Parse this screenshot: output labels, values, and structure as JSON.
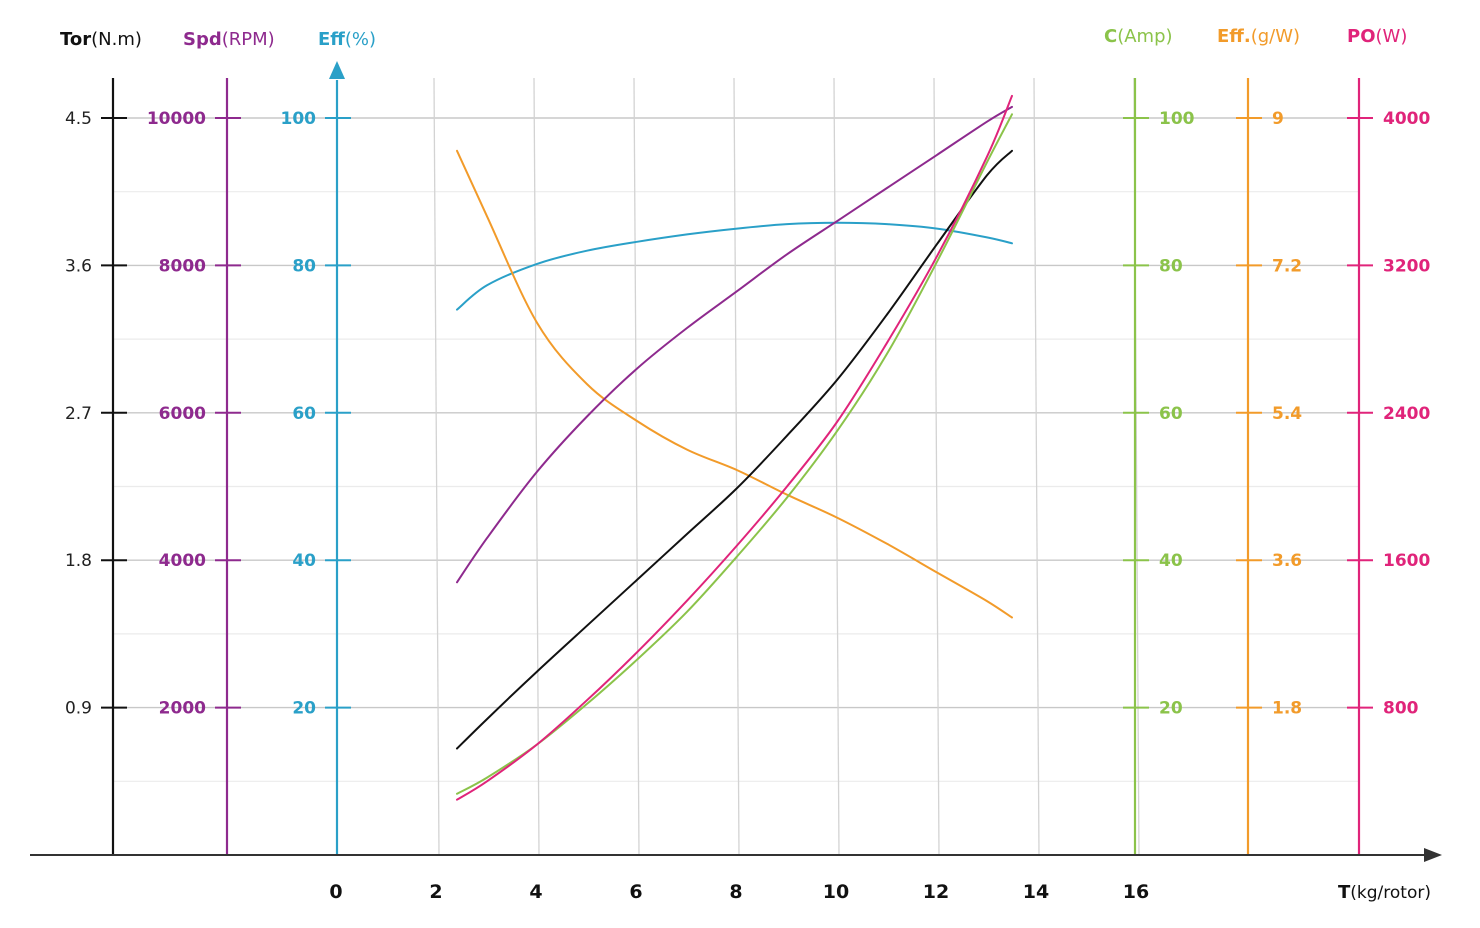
{
  "chart_data": {
    "type": "line",
    "x": {
      "label_name": "T",
      "label_unit": "(kg/rotor)",
      "ticks": [
        "0",
        "2",
        "4",
        "6",
        "8",
        "10",
        "12",
        "14",
        "16"
      ],
      "range": [
        0,
        16
      ]
    },
    "axes": [
      {
        "id": "tor",
        "name": "Tor",
        "unit": "(N.m)",
        "color": "#111111",
        "side": "left",
        "range": [
          0,
          4.5
        ],
        "ticks": [
          "0.9",
          "1.8",
          "2.7",
          "3.6",
          "4.5"
        ]
      },
      {
        "id": "spd",
        "name": "Spd",
        "unit": "(RPM)",
        "color": "#8e2a8e",
        "side": "left",
        "range": [
          0,
          10000
        ],
        "ticks": [
          "2000",
          "4000",
          "6000",
          "8000",
          "10000"
        ]
      },
      {
        "id": "eff",
        "name": "Eff",
        "unit": "(%)",
        "color": "#2aa0c8",
        "side": "left",
        "range": [
          0,
          100
        ],
        "ticks": [
          "20",
          "40",
          "60",
          "80",
          "100"
        ]
      },
      {
        "id": "cur",
        "name": "C",
        "unit": "(Amp)",
        "color": "#8bc34a",
        "side": "right",
        "range": [
          0,
          100
        ],
        "ticks": [
          "20",
          "40",
          "60",
          "80",
          "100"
        ]
      },
      {
        "id": "effg",
        "name": "Eff.",
        "unit": "(g/W)",
        "color": "#f29b2a",
        "side": "right",
        "range": [
          0,
          9
        ],
        "ticks": [
          "1.8",
          "3.6",
          "5.4",
          "7.2",
          "9"
        ]
      },
      {
        "id": "po",
        "name": "PO",
        "unit": "(W)",
        "color": "#e0247a",
        "side": "right",
        "range": [
          0,
          4000
        ],
        "ticks": [
          "800",
          "1600",
          "2400",
          "3200",
          "4000"
        ]
      }
    ],
    "series": [
      {
        "axis": "eff",
        "color": "#2aa0c8",
        "x": [
          2.4,
          3,
          4,
          5,
          6,
          7,
          8,
          9,
          10,
          11,
          12,
          13,
          13.5
        ],
        "y": [
          74,
          77.3,
          80.2,
          82,
          83.2,
          84.2,
          85,
          85.6,
          85.8,
          85.6,
          85,
          83.8,
          83
        ]
      },
      {
        "axis": "effg",
        "color": "#f29b2a",
        "x": [
          2.4,
          3,
          4,
          5,
          6,
          7,
          8,
          9,
          10,
          11,
          12,
          13,
          13.5
        ],
        "y": [
          8.6,
          7.8,
          6.5,
          5.75,
          5.3,
          4.95,
          4.7,
          4.4,
          4.12,
          3.8,
          3.45,
          3.1,
          2.9
        ]
      },
      {
        "axis": "spd",
        "color": "#8e2a8e",
        "x": [
          2.4,
          3,
          4,
          5,
          6,
          7,
          8,
          9,
          10,
          11,
          12,
          13,
          13.5
        ],
        "y": [
          3700,
          4300,
          5200,
          5950,
          6600,
          7150,
          7650,
          8150,
          8600,
          9050,
          9500,
          9950,
          10150
        ]
      },
      {
        "axis": "tor",
        "color": "#111111",
        "x": [
          2.4,
          3,
          4,
          5,
          6,
          7,
          8,
          9,
          10,
          11,
          12,
          13,
          13.5
        ],
        "y": [
          0.65,
          0.83,
          1.12,
          1.4,
          1.68,
          1.96,
          2.24,
          2.56,
          2.9,
          3.3,
          3.73,
          4.15,
          4.3
        ]
      },
      {
        "axis": "cur",
        "color": "#8bc34a",
        "x": [
          2.4,
          3,
          4,
          5,
          6,
          7,
          8,
          9,
          10,
          11,
          12,
          13,
          13.5
        ],
        "y": [
          8.3,
          10.5,
          15,
          20.5,
          26.5,
          33,
          40.5,
          48.5,
          57.5,
          68,
          80.5,
          94,
          100.5
        ]
      },
      {
        "axis": "po",
        "color": "#e0247a",
        "x": [
          2.4,
          3,
          4,
          5,
          6,
          7,
          8,
          9,
          10,
          11,
          12,
          13,
          13.5
        ],
        "y": [
          300,
          400,
          600,
          840,
          1100,
          1380,
          1680,
          2000,
          2350,
          2780,
          3250,
          3790,
          4120
        ]
      }
    ],
    "grid": true,
    "legend": "none"
  }
}
